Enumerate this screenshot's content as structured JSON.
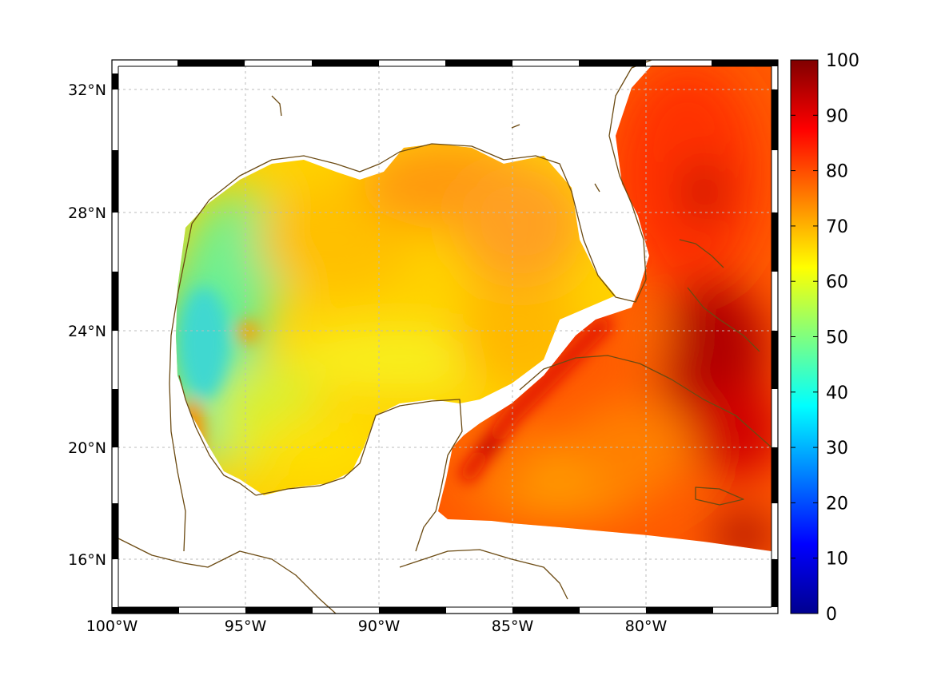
{
  "map": {
    "lon_ticks": [
      "100°W",
      "95°W",
      "90°W",
      "85°W",
      "80°W"
    ],
    "lat_ticks": [
      "32°N",
      "28°N",
      "24°N",
      "20°N",
      "16°N"
    ],
    "lon_range": [
      -100,
      -75
    ],
    "lat_range": [
      14.2,
      33
    ],
    "grid": true,
    "coastline_color": "#6b4a12",
    "land_color": "#ffffff"
  },
  "colorbar": {
    "ticks": [
      "100",
      "90",
      "80",
      "70",
      "60",
      "50",
      "40",
      "30",
      "20",
      "10",
      "0"
    ],
    "range": [
      0,
      100
    ],
    "colormap": "jet",
    "position": "right"
  },
  "field": {
    "description_values": {
      "western_gulf_min": 45,
      "central_gulf": 68,
      "eastern_gulf": 75,
      "atlantic_east_of_florida": 88,
      "caribbean_south": 82,
      "bahamas_max": 97
    }
  }
}
